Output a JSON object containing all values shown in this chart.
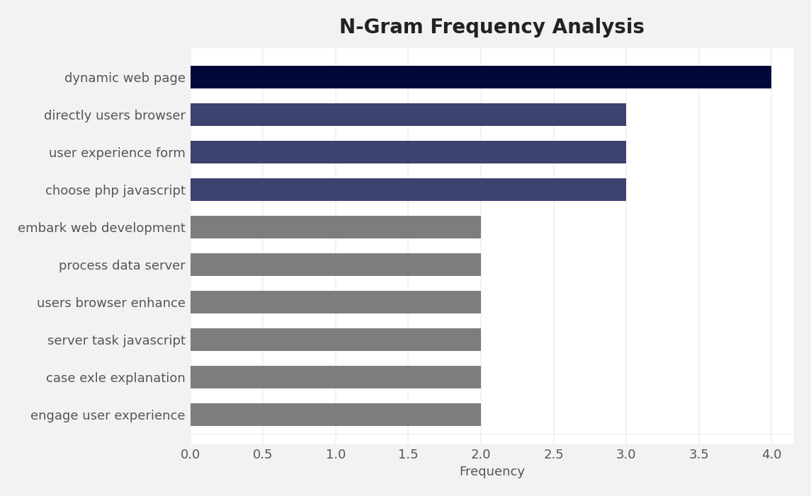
{
  "title": "N-Gram Frequency Analysis",
  "categories": [
    "engage user experience",
    "case exle explanation",
    "server task javascript",
    "users browser enhance",
    "process data server",
    "embark web development",
    "choose php javascript",
    "user experience form",
    "directly users browser",
    "dynamic web page"
  ],
  "values": [
    2,
    2,
    2,
    2,
    2,
    2,
    3,
    3,
    3,
    4
  ],
  "bar_colors": [
    "#7d7d7d",
    "#7d7d7d",
    "#7d7d7d",
    "#7d7d7d",
    "#7d7d7d",
    "#7d7d7d",
    "#3c4370",
    "#3c4370",
    "#3c4370",
    "#00083a"
  ],
  "xlabel": "Frequency",
  "xlim": [
    0,
    4.15
  ],
  "xticks": [
    0.0,
    0.5,
    1.0,
    1.5,
    2.0,
    2.5,
    3.0,
    3.5,
    4.0
  ],
  "figure_bg": "#f2f2f2",
  "axes_bg": "#ffffff",
  "grid_color": "#f2f2f2",
  "title_fontsize": 20,
  "label_fontsize": 13,
  "tick_fontsize": 13,
  "bar_height": 0.6
}
